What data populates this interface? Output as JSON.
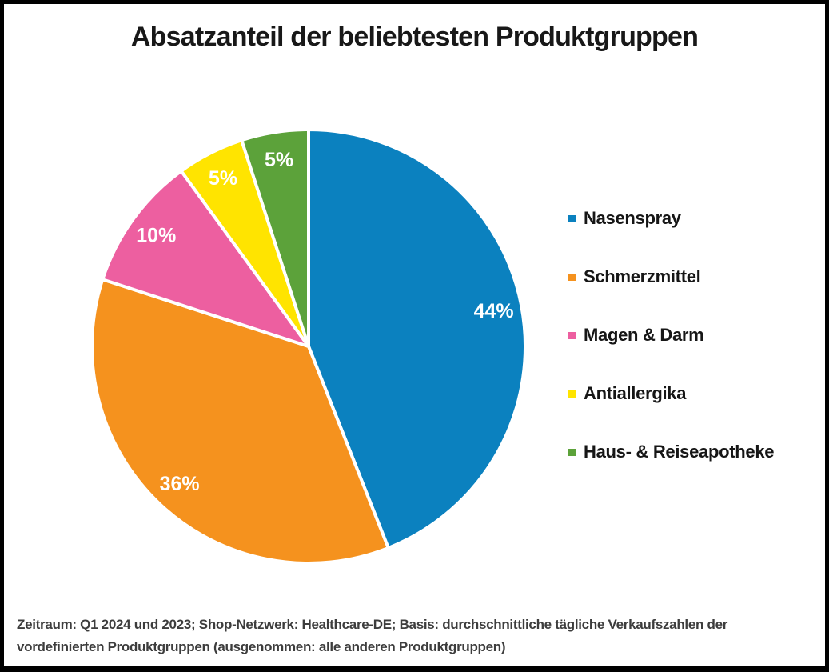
{
  "page": {
    "background": "#ffffff",
    "frame_border_color": "#000000"
  },
  "chart_data": {
    "type": "pie",
    "title": "Absatzanteil der beliebtesten Produktgruppen",
    "slices": [
      {
        "label": "Nasenspray",
        "value": 44,
        "color": "#0b81bf"
      },
      {
        "label": "Schmerzmittel",
        "value": 36,
        "color": "#f5921e"
      },
      {
        "label": "Magen & Darm",
        "value": 10,
        "color": "#ed5fa0"
      },
      {
        "label": "Antiallergika",
        "value": 5,
        "color": "#ffe400"
      },
      {
        "label": "Haus- & Reiseapotheke",
        "value": 5,
        "color": "#5ca23a"
      }
    ],
    "value_suffix": "%",
    "start_angle_deg": 0,
    "direction": "clockwise",
    "legend_position": "right",
    "slice_label_color": "#ffffff",
    "slice_separator_color": "#ffffff"
  },
  "footer": {
    "text": "Zeitraum: Q1 2024 und 2023; Shop-Netzwerk: Healthcare-DE; Basis: durchschnittliche tägliche Verkaufszahlen der vordefinierten Produktgruppen (ausgenommen: alle anderen Produktgruppen)"
  }
}
